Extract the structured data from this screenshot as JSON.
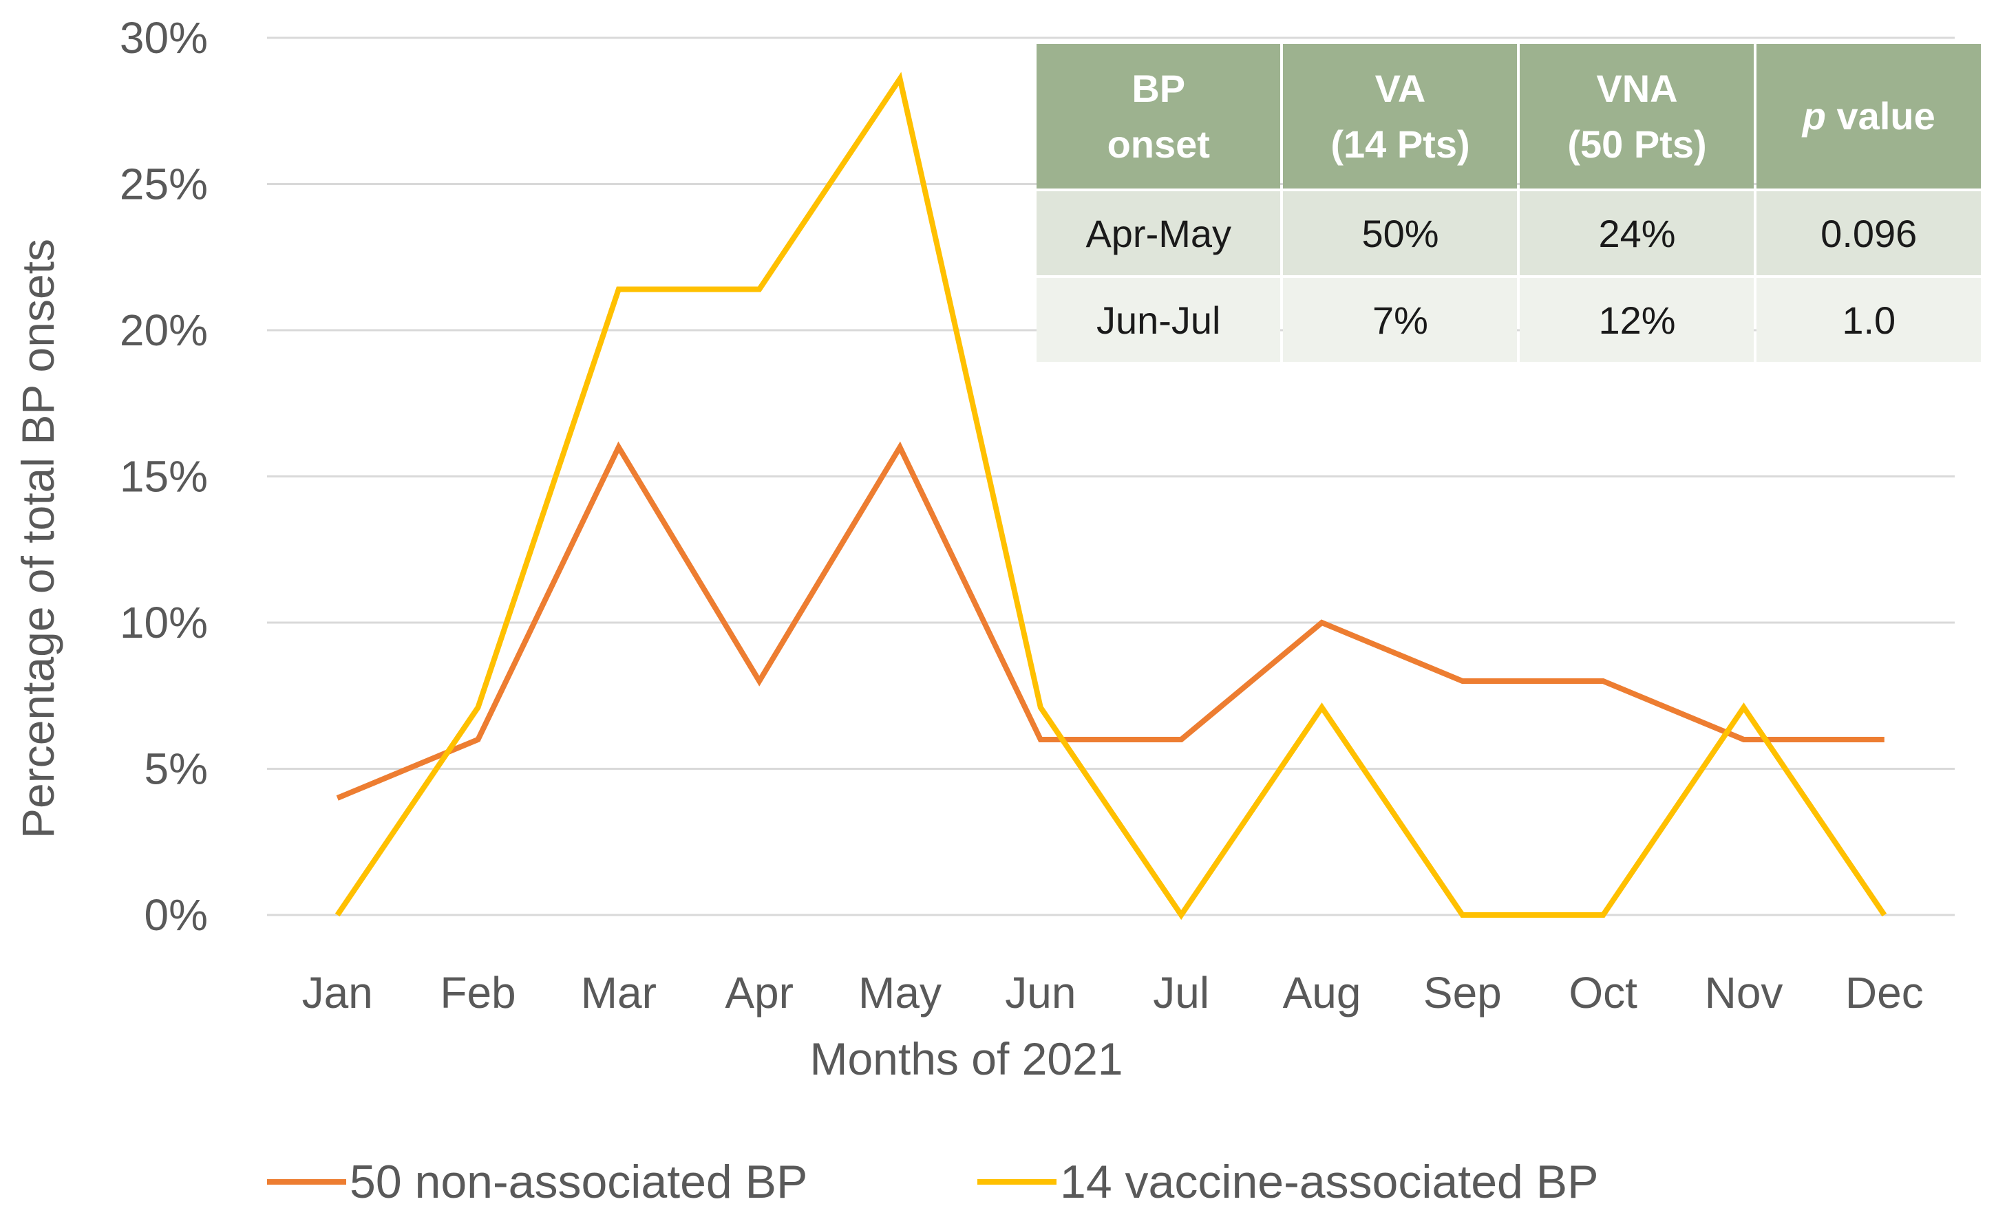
{
  "chart_data": {
    "type": "line",
    "categories": [
      "Jan",
      "Feb",
      "Mar",
      "Apr",
      "May",
      "Jun",
      "Jul",
      "Aug",
      "Sep",
      "Oct",
      "Nov",
      "Dec"
    ],
    "series": [
      {
        "name": "50 non-associated BP",
        "color": "#ed7d31",
        "values": [
          4,
          6,
          16,
          8,
          16,
          6,
          6,
          10,
          8,
          8,
          6,
          6
        ]
      },
      {
        "name": "14 vaccine-associated BP",
        "color": "#ffc000",
        "values": [
          0,
          7.1,
          21.4,
          21.4,
          28.6,
          7.1,
          0,
          7.1,
          0,
          0,
          7.1,
          0
        ]
      }
    ],
    "xlabel": "Months of 2021",
    "ylabel": "Percentage of total BP onsets",
    "ylim": [
      0,
      30
    ],
    "yticks": [
      0,
      5,
      10,
      15,
      20,
      25,
      30
    ],
    "ytick_labels": [
      "0%",
      "5%",
      "10%",
      "15%",
      "20%",
      "25%",
      "30%"
    ],
    "grid": true,
    "legend_position": "bottom"
  },
  "table": {
    "headers": [
      {
        "line1": "BP",
        "line2": "onset",
        "italic": ""
      },
      {
        "line1": "VA",
        "line2": "(14 Pts)",
        "italic": ""
      },
      {
        "line1": "VNA",
        "line2": "(50 Pts)",
        "italic": ""
      },
      {
        "line1": " value",
        "line2": "",
        "italic": "p"
      }
    ],
    "rows": [
      [
        "Apr-May",
        "50%",
        "24%",
        "0.096"
      ],
      [
        "Jun-Jul",
        "7%",
        "12%",
        "1.0"
      ]
    ]
  }
}
